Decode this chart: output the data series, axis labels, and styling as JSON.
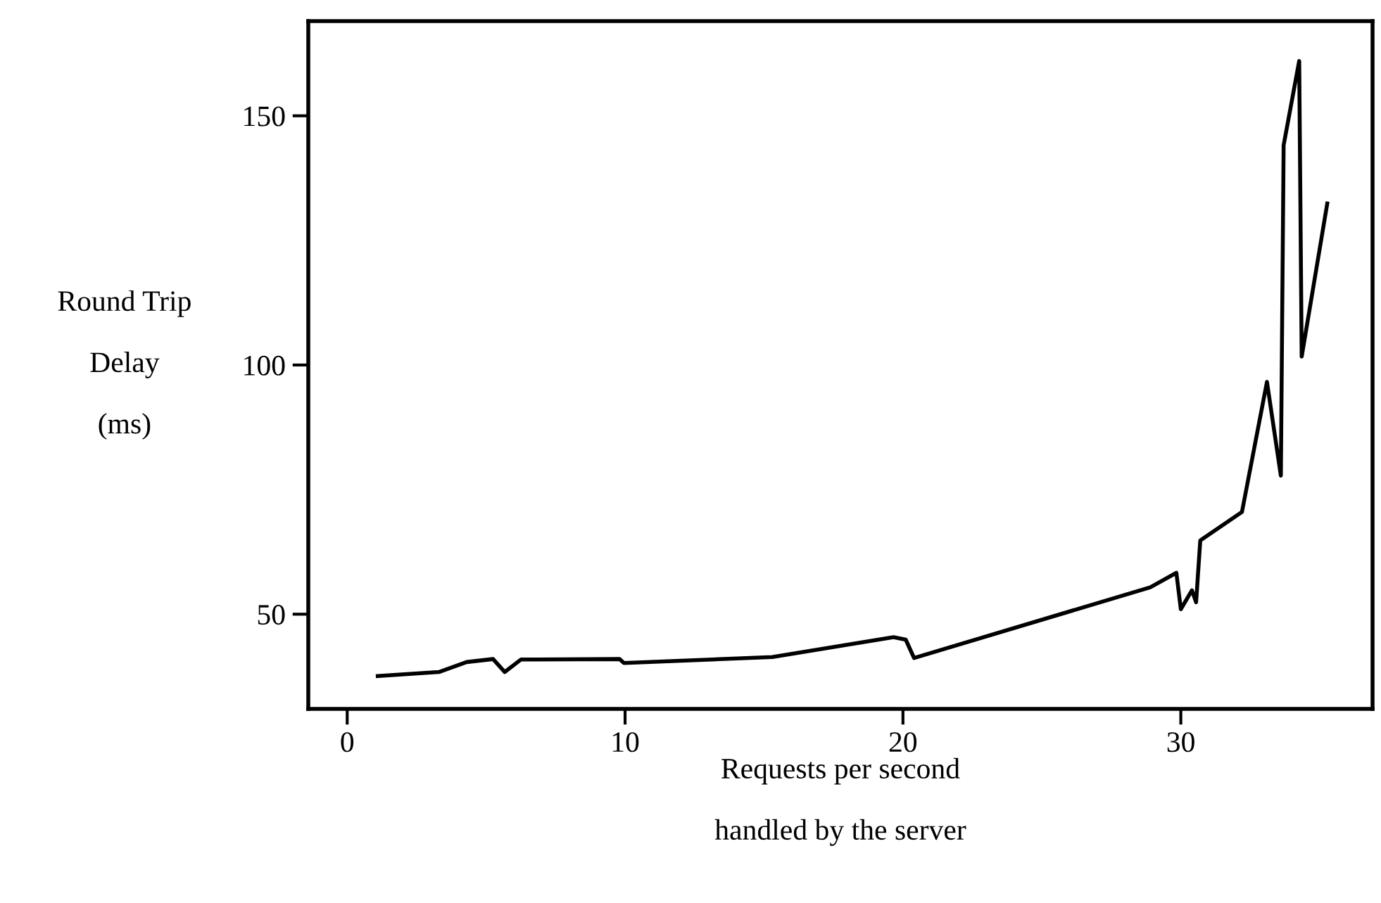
{
  "chart_data": {
    "type": "line",
    "xlabel": "Requests per second\n\nhandled by the server",
    "ylabel": "Round Trip\n\nDelay\n\n(ms)",
    "x": [
      1.1,
      3.3,
      4.3,
      5.25,
      5.67,
      6.25,
      9.8,
      9.96,
      15.3,
      19.66,
      20.1,
      20.4,
      28.9,
      29.84,
      30.0,
      30.4,
      30.55,
      30.7,
      32.2,
      33.1,
      33.6,
      33.7,
      34.26,
      34.35,
      35.27
    ],
    "series": [
      {
        "color": "#000000",
        "values": [
          37.6,
          38.4,
          40.4,
          41,
          38.4,
          40.9,
          41,
          40.2,
          41.4,
          45.4,
          44.9,
          41.2,
          55.4,
          58.3,
          51,
          54.8,
          52.4,
          64.8,
          70.5,
          96.6,
          77.8,
          144.1,
          161,
          101.7,
          132.4
        ]
      }
    ],
    "xlim": [
      -1.4,
      36.9
    ],
    "ylim": [
      31,
      169
    ],
    "xticks": [
      0,
      10,
      20,
      30
    ],
    "yticks": [
      50,
      100,
      150
    ],
    "grid": false,
    "legend": false,
    "marker": "none",
    "line_style": "solid"
  }
}
